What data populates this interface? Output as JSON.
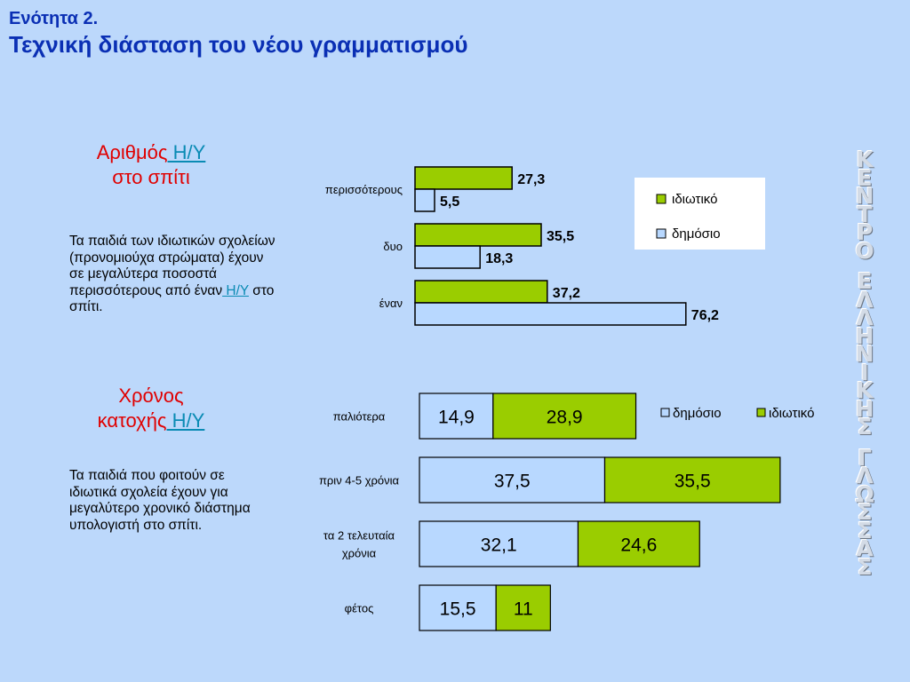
{
  "header": {
    "line1": "Ενότητα 2.",
    "line2": "Τεχνική διάσταση του νέου γραμματισμού"
  },
  "section1": {
    "title_part1": "Αριθμός",
    "title_link": " Η/Υ",
    "title_part2": "στο σπίτι",
    "text": "Τα παιδιά των ιδιωτικών σχολείων (προνομιούχα στρώματα) έχουν σε μεγαλύτερα ποσοστά περισσότερους από έναν",
    "text_link": " Η/Υ",
    "text_end": " στο σπίτι."
  },
  "section2": {
    "title_part1": "Χρόνος",
    "title_part2": "κατοχής",
    "title_link": " Η/Υ",
    "text": "Τα παιδιά που φοιτούν σε ιδιωτικά σχολεία έχουν για μεγαλύτερο χρονικό διάστημα υπολογιστή στο σπίτι."
  },
  "watermark": {
    "text": "ΚΕΝΤΡΟ ΕΛΛΗΝΙΚΗΣ ΓΛΩΣΣΑΣ"
  },
  "chart_data": [
    {
      "type": "bar",
      "orientation": "horizontal",
      "categories": [
        "περισσότερους",
        "δυο",
        "έναν"
      ],
      "series": [
        {
          "name": "ιδιωτικό",
          "values": [
            27.3,
            35.5,
            37.2
          ],
          "labels": [
            "27,3",
            "35,5",
            "37,2"
          ],
          "color": "#9acd00"
        },
        {
          "name": "δημόσιο",
          "values": [
            5.5,
            18.3,
            76.2
          ],
          "labels": [
            "5,5",
            "18,3",
            "76,2"
          ],
          "color": "#b8d8ff"
        }
      ],
      "legend": [
        "ιδιωτικό",
        "δημόσιο"
      ],
      "legend_position": "top-right"
    },
    {
      "type": "bar",
      "orientation": "horizontal",
      "stacked": true,
      "categories": [
        "παλιότερα",
        "πριν 4-5 χρόνια",
        "τα 2 τελευταία χρόνια",
        "φέτος"
      ],
      "series": [
        {
          "name": "δημόσιο",
          "values": [
            14.9,
            37.5,
            32.1,
            15.5
          ],
          "labels": [
            "14,9",
            "37,5",
            "32,1",
            "15,5"
          ],
          "color": "#b8d8ff"
        },
        {
          "name": "ιδιωτικό",
          "values": [
            28.9,
            35.5,
            24.6,
            11
          ],
          "labels": [
            "28,9",
            "35,5",
            "24,6",
            "11"
          ],
          "color": "#9acd00"
        }
      ],
      "legend": [
        "δημόσιο",
        "ιδιωτικό"
      ],
      "legend_position": "top-right"
    }
  ]
}
